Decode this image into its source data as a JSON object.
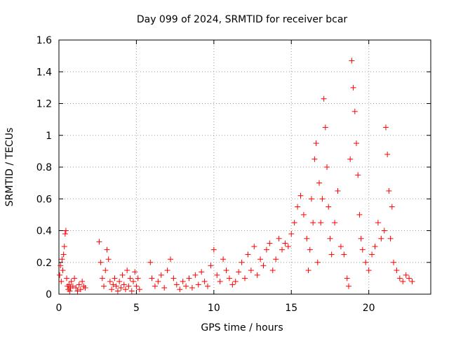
{
  "chart_data": {
    "type": "scatter",
    "title": "Day 099 of 2024, SRMTID for receiver bcar",
    "xlabel": "GPS time / hours",
    "ylabel": "SRMTID / TECUs",
    "xlim": [
      0,
      24
    ],
    "ylim": [
      0,
      1.6
    ],
    "x_ticks": [
      "0",
      "5",
      "10",
      "15",
      "20"
    ],
    "x_tick_values": [
      0,
      5,
      10,
      15,
      20
    ],
    "y_ticks": [
      "0",
      "0.2",
      "0.4",
      "0.6",
      "0.8",
      "1",
      "1.2",
      "1.4",
      "1.6"
    ],
    "y_tick_values": [
      0,
      0.2,
      0.4,
      0.6,
      0.8,
      1.0,
      1.2,
      1.4,
      1.6
    ],
    "grid": true,
    "marker": "+",
    "marker_color": "#ff0000",
    "series": [
      {
        "name": "SRMTID",
        "x": [
          0.05,
          0.1,
          0.15,
          0.2,
          0.25,
          0.3,
          0.35,
          0.4,
          0.45,
          0.5,
          0.55,
          0.6,
          0.65,
          0.7,
          0.75,
          0.8,
          0.9,
          1.0,
          1.1,
          1.2,
          1.3,
          1.4,
          1.5,
          1.6,
          1.7,
          2.6,
          2.7,
          2.8,
          2.9,
          3.0,
          3.1,
          3.2,
          3.3,
          3.4,
          3.5,
          3.6,
          3.7,
          3.8,
          3.9,
          4.0,
          4.1,
          4.2,
          4.3,
          4.4,
          4.5,
          4.6,
          4.7,
          4.8,
          4.9,
          5.0,
          5.1,
          5.2,
          5.9,
          6.0,
          6.2,
          6.4,
          6.6,
          6.8,
          7.0,
          7.2,
          7.4,
          7.6,
          7.8,
          8.0,
          8.2,
          8.4,
          8.6,
          8.8,
          9.0,
          9.2,
          9.4,
          9.6,
          9.8,
          10.0,
          10.2,
          10.4,
          10.6,
          10.8,
          11.0,
          11.2,
          11.4,
          11.6,
          11.8,
          12.0,
          12.2,
          12.4,
          12.6,
          12.8,
          13.0,
          13.2,
          13.4,
          13.6,
          13.8,
          14.0,
          14.2,
          14.4,
          14.6,
          14.8,
          15.0,
          15.2,
          15.4,
          15.6,
          15.8,
          16.0,
          16.1,
          16.2,
          16.3,
          16.4,
          16.5,
          16.6,
          16.7,
          16.8,
          16.9,
          17.0,
          17.1,
          17.2,
          17.3,
          17.4,
          17.5,
          17.6,
          17.8,
          18.0,
          18.2,
          18.4,
          18.6,
          18.7,
          18.8,
          18.9,
          19.0,
          19.1,
          19.2,
          19.3,
          19.4,
          19.5,
          19.6,
          19.8,
          20.0,
          20.2,
          20.4,
          20.6,
          20.8,
          21.0,
          21.1,
          21.2,
          21.3,
          21.4,
          21.5,
          21.6,
          21.8,
          22.0,
          22.2,
          22.4,
          22.6,
          22.8
        ],
        "y": [
          0.12,
          0.18,
          0.08,
          0.22,
          0.15,
          0.25,
          0.3,
          0.38,
          0.4,
          0.1,
          0.05,
          0.03,
          0.06,
          0.02,
          0.04,
          0.08,
          0.05,
          0.1,
          0.04,
          0.02,
          0.06,
          0.03,
          0.08,
          0.05,
          0.04,
          0.33,
          0.2,
          0.1,
          0.05,
          0.15,
          0.28,
          0.22,
          0.08,
          0.03,
          0.06,
          0.1,
          0.05,
          0.02,
          0.08,
          0.04,
          0.12,
          0.06,
          0.03,
          0.15,
          0.05,
          0.1,
          0.02,
          0.08,
          0.14,
          0.05,
          0.1,
          0.03,
          0.2,
          0.1,
          0.05,
          0.08,
          0.12,
          0.04,
          0.15,
          0.22,
          0.1,
          0.06,
          0.03,
          0.08,
          0.05,
          0.1,
          0.04,
          0.12,
          0.06,
          0.14,
          0.08,
          0.05,
          0.18,
          0.28,
          0.12,
          0.08,
          0.22,
          0.15,
          0.1,
          0.06,
          0.08,
          0.14,
          0.2,
          0.1,
          0.25,
          0.15,
          0.3,
          0.12,
          0.22,
          0.18,
          0.28,
          0.32,
          0.15,
          0.22,
          0.35,
          0.28,
          0.32,
          0.3,
          0.38,
          0.45,
          0.55,
          0.62,
          0.5,
          0.35,
          0.15,
          0.28,
          0.6,
          0.45,
          0.85,
          0.95,
          0.2,
          0.7,
          0.45,
          0.6,
          1.23,
          1.05,
          0.8,
          0.55,
          0.35,
          0.25,
          0.45,
          0.65,
          0.3,
          0.25,
          0.1,
          0.05,
          0.85,
          1.47,
          1.3,
          1.15,
          0.95,
          0.75,
          0.5,
          0.35,
          0.28,
          0.2,
          0.15,
          0.25,
          0.3,
          0.45,
          0.35,
          0.4,
          1.05,
          0.88,
          0.65,
          0.35,
          0.55,
          0.2,
          0.15,
          0.1,
          0.08,
          0.12,
          0.1,
          0.08
        ]
      }
    ]
  }
}
